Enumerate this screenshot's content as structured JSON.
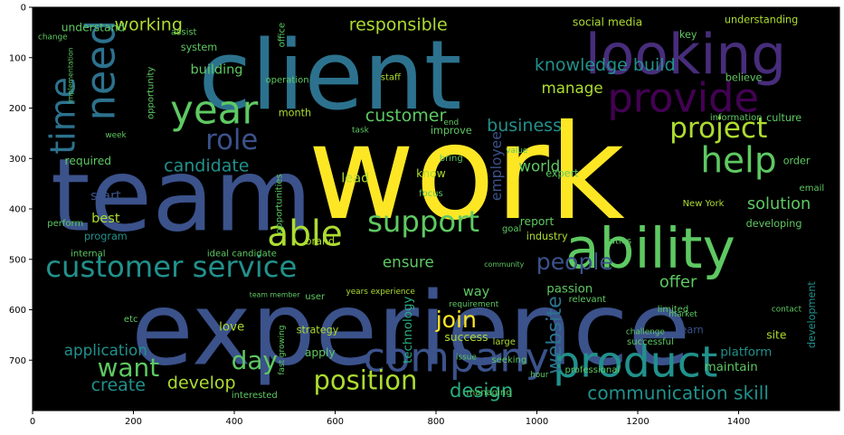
{
  "colors": {
    "background": "#000000",
    "axis": "#000000",
    "palette": [
      "#fde725",
      "#5ec962",
      "#21918c",
      "#3b528b",
      "#440154",
      "#2c728e",
      "#addc30",
      "#27ad81",
      "#472d7b"
    ]
  },
  "axes": {
    "x_ticks": [
      "0",
      "200",
      "400",
      "600",
      "800",
      "1000",
      "1200",
      "1400"
    ],
    "y_ticks": [
      "0",
      "100",
      "200",
      "300",
      "400",
      "500",
      "600",
      "700"
    ],
    "x_tick_values": [
      0,
      200,
      400,
      600,
      800,
      1000,
      1200,
      1400
    ],
    "y_tick_values": [
      0,
      100,
      200,
      300,
      400,
      500,
      600,
      700
    ],
    "xlim": [
      0,
      1600
    ],
    "ylim": [
      800,
      0
    ]
  },
  "words": [
    {
      "text": "work",
      "x": 860,
      "y": 330,
      "size": 260,
      "color": "#fde725"
    },
    {
      "text": "experience",
      "x": 750,
      "y": 640,
      "size": 200,
      "color": "#3b528b"
    },
    {
      "text": "team",
      "x": 295,
      "y": 375,
      "size": 200,
      "color": "#3b528b"
    },
    {
      "text": "client",
      "x": 590,
      "y": 135,
      "size": 190,
      "color": "#2c728e"
    },
    {
      "text": "looking",
      "x": 1295,
      "y": 95,
      "size": 110,
      "color": "#472d7b"
    },
    {
      "text": "ability",
      "x": 1225,
      "y": 480,
      "size": 110,
      "color": "#5ec962"
    },
    {
      "text": "provide",
      "x": 1290,
      "y": 180,
      "size": 80,
      "color": "#440154"
    },
    {
      "text": "product",
      "x": 1195,
      "y": 705,
      "size": 85,
      "color": "#21918c"
    },
    {
      "text": "company",
      "x": 840,
      "y": 695,
      "size": 80,
      "color": "#3b528b"
    },
    {
      "text": "need",
      "x": 135,
      "y": 125,
      "size": 80,
      "color": "#2c728e",
      "rotate": -90
    },
    {
      "text": "year",
      "x": 360,
      "y": 205,
      "size": 78,
      "color": "#5ec962"
    },
    {
      "text": "help",
      "x": 1400,
      "y": 305,
      "size": 70,
      "color": "#5ec962"
    },
    {
      "text": "able",
      "x": 540,
      "y": 450,
      "size": 70,
      "color": "#addc30"
    },
    {
      "text": "time",
      "x": 60,
      "y": 215,
      "size": 68,
      "color": "#2c728e",
      "rotate": -90
    },
    {
      "text": "customer service",
      "x": 275,
      "y": 515,
      "size": 58,
      "color": "#21918c"
    },
    {
      "text": "support",
      "x": 775,
      "y": 425,
      "size": 58,
      "color": "#5ec962"
    },
    {
      "text": "project",
      "x": 1360,
      "y": 240,
      "size": 56,
      "color": "#addc30"
    },
    {
      "text": "role",
      "x": 395,
      "y": 265,
      "size": 55,
      "color": "#3b528b"
    },
    {
      "text": "position",
      "x": 660,
      "y": 740,
      "size": 52,
      "color": "#addc30"
    },
    {
      "text": "day",
      "x": 440,
      "y": 700,
      "size": 50,
      "color": "#5ec962"
    },
    {
      "text": "want",
      "x": 190,
      "y": 715,
      "size": 50,
      "color": "#5ec962"
    },
    {
      "text": "join",
      "x": 840,
      "y": 620,
      "size": 45,
      "color": "#fde725"
    },
    {
      "text": "people",
      "x": 1075,
      "y": 505,
      "size": 45,
      "color": "#3b528b"
    },
    {
      "text": "website",
      "x": 1035,
      "y": 650,
      "size": 40,
      "color": "#2c728e",
      "rotate": -90
    },
    {
      "text": "design",
      "x": 890,
      "y": 760,
      "size": 38,
      "color": "#27ad81"
    },
    {
      "text": "communication skill",
      "x": 1280,
      "y": 765,
      "size": 36,
      "color": "#21918c"
    },
    {
      "text": "develop",
      "x": 335,
      "y": 745,
      "size": 34,
      "color": "#addc30"
    },
    {
      "text": "create",
      "x": 170,
      "y": 750,
      "size": 34,
      "color": "#21918c"
    },
    {
      "text": "responsible",
      "x": 725,
      "y": 35,
      "size": 34,
      "color": "#addc30"
    },
    {
      "text": "working",
      "x": 230,
      "y": 35,
      "size": 34,
      "color": "#addc30"
    },
    {
      "text": "knowledge build",
      "x": 1135,
      "y": 115,
      "size": 34,
      "color": "#21918c"
    },
    {
      "text": "customer",
      "x": 740,
      "y": 215,
      "size": 34,
      "color": "#5ec962"
    },
    {
      "text": "business",
      "x": 975,
      "y": 235,
      "size": 34,
      "color": "#21918c"
    },
    {
      "text": "candidate",
      "x": 345,
      "y": 315,
      "size": 34,
      "color": "#21918c"
    },
    {
      "text": "manage",
      "x": 1070,
      "y": 160,
      "size": 30,
      "color": "#addc30"
    },
    {
      "text": "offer",
      "x": 1280,
      "y": 545,
      "size": 32,
      "color": "#5ec962"
    },
    {
      "text": "solution",
      "x": 1480,
      "y": 390,
      "size": 32,
      "color": "#5ec962"
    },
    {
      "text": "ensure",
      "x": 745,
      "y": 505,
      "size": 30,
      "color": "#5ec962"
    },
    {
      "text": "world",
      "x": 1005,
      "y": 315,
      "size": 30,
      "color": "#5ec962"
    },
    {
      "text": "application",
      "x": 145,
      "y": 680,
      "size": 30,
      "color": "#21918c"
    },
    {
      "text": "social media",
      "x": 1140,
      "y": 30,
      "size": 22,
      "color": "#addc30"
    },
    {
      "text": "employee",
      "x": 920,
      "y": 315,
      "size": 28,
      "color": "#3b528b",
      "rotate": -90
    },
    {
      "text": "technology",
      "x": 745,
      "y": 640,
      "size": 24,
      "color": "#27ad81",
      "rotate": -90
    },
    {
      "text": "lead",
      "x": 640,
      "y": 340,
      "size": 26,
      "color": "#addc30"
    },
    {
      "text": "best",
      "x": 145,
      "y": 420,
      "size": 26,
      "color": "#addc30"
    },
    {
      "text": "start",
      "x": 145,
      "y": 375,
      "size": 26,
      "color": "#3b528b"
    },
    {
      "text": "building",
      "x": 365,
      "y": 125,
      "size": 26,
      "color": "#5ec962"
    },
    {
      "text": "maintain",
      "x": 1385,
      "y": 715,
      "size": 24,
      "color": "#5ec962"
    },
    {
      "text": "platform",
      "x": 1415,
      "y": 685,
      "size": 24,
      "color": "#21918c"
    },
    {
      "text": "passion",
      "x": 1065,
      "y": 560,
      "size": 24,
      "color": "#5ec962"
    },
    {
      "text": "love",
      "x": 395,
      "y": 635,
      "size": 24,
      "color": "#addc30"
    },
    {
      "text": "way",
      "x": 880,
      "y": 565,
      "size": 26,
      "color": "#5ec962"
    },
    {
      "text": "success",
      "x": 860,
      "y": 655,
      "size": 22,
      "color": "#addc30"
    },
    {
      "text": "required",
      "x": 110,
      "y": 305,
      "size": 22,
      "color": "#5ec962"
    },
    {
      "text": "understand",
      "x": 120,
      "y": 40,
      "size": 22,
      "color": "#5ec962"
    },
    {
      "text": "month",
      "x": 520,
      "y": 210,
      "size": 20,
      "color": "#addc30"
    },
    {
      "text": "apply",
      "x": 570,
      "y": 685,
      "size": 22,
      "color": "#5ec962"
    },
    {
      "text": "strategy",
      "x": 565,
      "y": 640,
      "size": 20,
      "color": "#addc30"
    },
    {
      "text": "learn",
      "x": 1305,
      "y": 640,
      "size": 20,
      "color": "#3b528b"
    },
    {
      "text": "site",
      "x": 1475,
      "y": 650,
      "size": 22,
      "color": "#addc30"
    },
    {
      "text": "development",
      "x": 1545,
      "y": 610,
      "size": 20,
      "color": "#21918c",
      "rotate": -90
    },
    {
      "text": "understanding",
      "x": 1445,
      "y": 25,
      "size": 20,
      "color": "#addc30"
    },
    {
      "text": "New York",
      "x": 1330,
      "y": 390,
      "size": 18,
      "color": "#addc30"
    },
    {
      "text": "developing",
      "x": 1470,
      "y": 430,
      "size": 20,
      "color": "#5ec962"
    },
    {
      "text": "report",
      "x": 1000,
      "y": 425,
      "size": 22,
      "color": "#5ec962"
    },
    {
      "text": "industry",
      "x": 1020,
      "y": 455,
      "size": 20,
      "color": "#addc30"
    },
    {
      "text": "brand",
      "x": 570,
      "y": 465,
      "size": 20,
      "color": "#addc30"
    },
    {
      "text": "know",
      "x": 790,
      "y": 330,
      "size": 22,
      "color": "#addc30"
    },
    {
      "text": "improve",
      "x": 830,
      "y": 245,
      "size": 20,
      "color": "#5ec962"
    },
    {
      "text": "expert",
      "x": 1050,
      "y": 330,
      "size": 20,
      "color": "#5ec962"
    },
    {
      "text": "information",
      "x": 1395,
      "y": 220,
      "size": 18,
      "color": "#5ec962"
    },
    {
      "text": "believe",
      "x": 1410,
      "y": 140,
      "size": 20,
      "color": "#5ec962"
    },
    {
      "text": "key",
      "x": 1300,
      "y": 55,
      "size": 20,
      "color": "#5ec962"
    },
    {
      "text": "culture",
      "x": 1490,
      "y": 220,
      "size": 20,
      "color": "#5ec962"
    },
    {
      "text": "order",
      "x": 1515,
      "y": 305,
      "size": 20,
      "color": "#5ec962"
    },
    {
      "text": "email",
      "x": 1545,
      "y": 360,
      "size": 18,
      "color": "#5ec962"
    },
    {
      "text": "program",
      "x": 145,
      "y": 455,
      "size": 20,
      "color": "#21918c"
    },
    {
      "text": "perform",
      "x": 65,
      "y": 430,
      "size": 18,
      "color": "#5ec962"
    },
    {
      "text": "internal",
      "x": 110,
      "y": 490,
      "size": 18,
      "color": "#5ec962"
    },
    {
      "text": "ideal candidate",
      "x": 415,
      "y": 490,
      "size": 18,
      "color": "#5ec962"
    },
    {
      "text": "opportunities",
      "x": 490,
      "y": 390,
      "size": 18,
      "color": "#5ec962",
      "rotate": -90
    },
    {
      "text": "opportunity",
      "x": 235,
      "y": 170,
      "size": 18,
      "color": "#5ec962",
      "rotate": -90
    },
    {
      "text": "system",
      "x": 330,
      "y": 80,
      "size": 20,
      "color": "#5ec962"
    },
    {
      "text": "assist",
      "x": 300,
      "y": 50,
      "size": 18,
      "color": "#5ec962"
    },
    {
      "text": "office",
      "x": 495,
      "y": 55,
      "size": 18,
      "color": "#5ec962",
      "rotate": -90
    },
    {
      "text": "task",
      "x": 650,
      "y": 245,
      "size": 16,
      "color": "#5ec962"
    },
    {
      "text": "staff",
      "x": 710,
      "y": 140,
      "size": 18,
      "color": "#addc30"
    },
    {
      "text": "operation",
      "x": 505,
      "y": 145,
      "size": 18,
      "color": "#5ec962"
    },
    {
      "text": "implementation",
      "x": 75,
      "y": 135,
      "size": 14,
      "color": "#5ec962",
      "rotate": -90
    },
    {
      "text": "change",
      "x": 40,
      "y": 60,
      "size": 16,
      "color": "#5ec962"
    },
    {
      "text": "week",
      "x": 165,
      "y": 255,
      "size": 16,
      "color": "#5ec962"
    },
    {
      "text": "team member",
      "x": 480,
      "y": 570,
      "size": 14,
      "color": "#5ec962"
    },
    {
      "text": "years experience",
      "x": 690,
      "y": 565,
      "size": 16,
      "color": "#addc30"
    },
    {
      "text": "requirement",
      "x": 875,
      "y": 590,
      "size": 16,
      "color": "#5ec962"
    },
    {
      "text": "fast growing",
      "x": 495,
      "y": 680,
      "size": 16,
      "color": "#5ec962",
      "rotate": -90
    },
    {
      "text": "seeking",
      "x": 945,
      "y": 700,
      "size": 18,
      "color": "#5ec962"
    },
    {
      "text": "large",
      "x": 935,
      "y": 665,
      "size": 18,
      "color": "#addc30"
    },
    {
      "text": "professional",
      "x": 1110,
      "y": 720,
      "size": 18,
      "color": "#5ec962"
    },
    {
      "text": "successful",
      "x": 1225,
      "y": 665,
      "size": 18,
      "color": "#5ec962"
    },
    {
      "text": "challenge",
      "x": 1215,
      "y": 645,
      "size": 16,
      "color": "#5ec962"
    },
    {
      "text": "managing",
      "x": 905,
      "y": 765,
      "size": 18,
      "color": "#5ec962"
    },
    {
      "text": "interested",
      "x": 440,
      "y": 770,
      "size": 18,
      "color": "#5ec962"
    },
    {
      "text": "etc",
      "x": 195,
      "y": 620,
      "size": 18,
      "color": "#5ec962"
    },
    {
      "text": "user",
      "x": 560,
      "y": 575,
      "size": 18,
      "color": "#5ec962"
    },
    {
      "text": "issue",
      "x": 860,
      "y": 695,
      "size": 16,
      "color": "#5ec962"
    },
    {
      "text": "relevant",
      "x": 1100,
      "y": 580,
      "size": 18,
      "color": "#5ec962"
    },
    {
      "text": "limited",
      "x": 1270,
      "y": 600,
      "size": 18,
      "color": "#5ec962"
    },
    {
      "text": "market",
      "x": 1290,
      "y": 610,
      "size": 16,
      "color": "#5ec962"
    },
    {
      "text": "contact",
      "x": 1495,
      "y": 600,
      "size": 16,
      "color": "#5ec962"
    },
    {
      "text": "duties",
      "x": 1160,
      "y": 465,
      "size": 18,
      "color": "#5ec962"
    },
    {
      "text": "goal",
      "x": 950,
      "y": 440,
      "size": 18,
      "color": "#5ec962"
    },
    {
      "text": "focus",
      "x": 790,
      "y": 370,
      "size": 18,
      "color": "#5ec962"
    },
    {
      "text": "bring",
      "x": 830,
      "y": 300,
      "size": 18,
      "color": "#5ec962"
    },
    {
      "text": "value",
      "x": 960,
      "y": 285,
      "size": 16,
      "color": "#5ec962"
    },
    {
      "text": "end",
      "x": 830,
      "y": 230,
      "size": 16,
      "color": "#5ec962"
    },
    {
      "text": "hour",
      "x": 1005,
      "y": 730,
      "size": 16,
      "color": "#5ec962"
    },
    {
      "text": "community",
      "x": 935,
      "y": 510,
      "size": 14,
      "color": "#5ec962"
    }
  ]
}
